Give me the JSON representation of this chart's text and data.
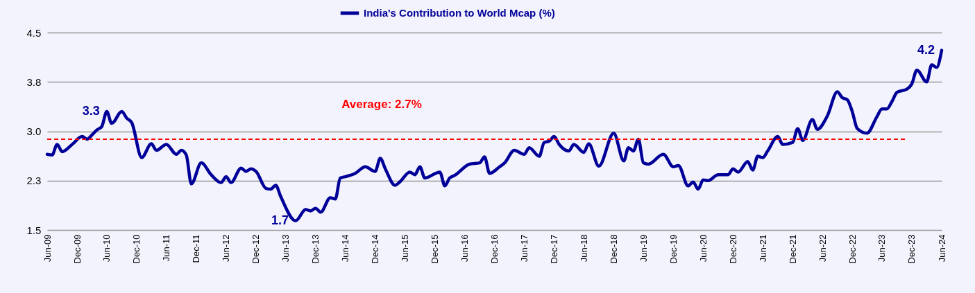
{
  "chart_data": {
    "type": "line",
    "x": [
      "2009-06",
      "2009-07",
      "2009-08",
      "2009-09",
      "2009-11",
      "2010-01",
      "2010-02",
      "2010-03",
      "2010-04",
      "2010-05",
      "2010-06",
      "2010-07",
      "2010-09",
      "2010-10",
      "2010-11",
      "2011-01",
      "2011-03",
      "2011-04",
      "2011-06",
      "2011-08",
      "2011-09",
      "2011-10",
      "2011-11",
      "2012-01",
      "2012-03",
      "2012-05",
      "2012-06",
      "2012-07",
      "2012-09",
      "2012-10",
      "2012-11",
      "2012-12",
      "2013-02",
      "2013-03",
      "2013-04",
      "2013-05",
      "2013-08",
      "2013-10",
      "2013-11",
      "2013-12",
      "2014-01",
      "2014-03",
      "2014-04",
      "2014-05",
      "2014-06",
      "2014-08",
      "2014-10",
      "2014-12",
      "2015-01",
      "2015-02",
      "2015-04",
      "2015-05",
      "2015-07",
      "2015-08",
      "2015-09",
      "2015-10",
      "2016-01",
      "2016-02",
      "2016-03",
      "2016-04",
      "2016-07",
      "2016-09",
      "2016-10",
      "2016-11",
      "2017-01",
      "2017-02",
      "2017-04",
      "2017-06",
      "2017-07",
      "2017-09",
      "2017-10",
      "2017-11",
      "2017-12",
      "2018-01",
      "2018-03",
      "2018-04",
      "2018-06",
      "2018-07",
      "2018-09",
      "2018-12",
      "2019-02",
      "2019-03",
      "2019-04",
      "2019-05",
      "2019-06",
      "2019-07",
      "2019-10",
      "2019-12",
      "2020-01",
      "2020-03",
      "2020-04",
      "2020-05",
      "2020-06",
      "2020-07",
      "2020-09",
      "2020-11",
      "2020-12",
      "2021-01",
      "2021-03",
      "2021-04",
      "2021-05",
      "2021-06",
      "2021-07",
      "2021-09",
      "2021-10",
      "2021-12",
      "2022-01",
      "2022-02",
      "2022-04",
      "2022-05",
      "2022-07",
      "2022-09",
      "2022-10",
      "2022-11",
      "2022-12",
      "2023-01",
      "2023-03",
      "2023-05",
      "2023-06",
      "2023-07",
      "2023-08",
      "2023-09",
      "2023-11",
      "2023-12",
      "2024-01",
      "2024-03",
      "2024-04",
      "2024-05",
      "2024-06"
    ],
    "series": [
      {
        "name": "India's Contribution to World Mcap (%)",
        "color": "#000099",
        "values": [
          2.65,
          2.64,
          2.8,
          2.69,
          2.8,
          2.92,
          2.88,
          2.94,
          3.02,
          3.07,
          3.3,
          3.12,
          3.3,
          3.2,
          3.13,
          2.6,
          2.81,
          2.71,
          2.8,
          2.65,
          2.71,
          2.64,
          2.2,
          2.52,
          2.34,
          2.22,
          2.31,
          2.22,
          2.44,
          2.39,
          2.43,
          2.39,
          2.13,
          2.12,
          2.18,
          2.01,
          1.64,
          1.81,
          1.79,
          1.83,
          1.77,
          1.99,
          1.97,
          2.29,
          2.31,
          2.36,
          2.46,
          2.39,
          2.59,
          2.43,
          2.18,
          2.23,
          2.38,
          2.34,
          2.46,
          2.29,
          2.38,
          2.17,
          2.29,
          2.33,
          2.5,
          2.52,
          2.61,
          2.36,
          2.46,
          2.52,
          2.71,
          2.65,
          2.75,
          2.62,
          2.83,
          2.85,
          2.92,
          2.8,
          2.7,
          2.8,
          2.68,
          2.81,
          2.47,
          2.97,
          2.55,
          2.75,
          2.7,
          2.88,
          2.52,
          2.5,
          2.65,
          2.46,
          2.48,
          2.17,
          2.23,
          2.12,
          2.26,
          2.25,
          2.34,
          2.34,
          2.43,
          2.38,
          2.54,
          2.41,
          2.62,
          2.6,
          2.7,
          2.92,
          2.8,
          2.83,
          3.04,
          2.86,
          3.18,
          3.03,
          3.23,
          3.6,
          3.51,
          3.48,
          3.3,
          3.04,
          2.97,
          3.22,
          3.34,
          3.34,
          3.45,
          3.59,
          3.64,
          3.72,
          3.93,
          3.75,
          4.01,
          3.97,
          4.23
        ]
      }
    ],
    "xlim": [
      "2009-06",
      "2024-06"
    ],
    "xticks": [
      {
        "value": "2009-06",
        "label": "Jun-09"
      },
      {
        "value": "2009-12",
        "label": "Dec-09"
      },
      {
        "value": "2010-06",
        "label": "Jun-10"
      },
      {
        "value": "2010-12",
        "label": "Dec-10"
      },
      {
        "value": "2011-06",
        "label": "Jun-11"
      },
      {
        "value": "2011-12",
        "label": "Dec-11"
      },
      {
        "value": "2012-06",
        "label": "Jun-12"
      },
      {
        "value": "2012-12",
        "label": "Dec-12"
      },
      {
        "value": "2013-06",
        "label": "Jun-13"
      },
      {
        "value": "2013-12",
        "label": "Dec-13"
      },
      {
        "value": "2014-06",
        "label": "Jun-14"
      },
      {
        "value": "2014-12",
        "label": "Dec-14"
      },
      {
        "value": "2015-06",
        "label": "Jun-15"
      },
      {
        "value": "2015-12",
        "label": "Dec-15"
      },
      {
        "value": "2016-06",
        "label": "Jun-16"
      },
      {
        "value": "2016-12",
        "label": "Dec-16"
      },
      {
        "value": "2017-06",
        "label": "Jun-17"
      },
      {
        "value": "2017-12",
        "label": "Dec-17"
      },
      {
        "value": "2018-06",
        "label": "Jun-18"
      },
      {
        "value": "2018-12",
        "label": "Dec-18"
      },
      {
        "value": "2019-06",
        "label": "Jun-19"
      },
      {
        "value": "2019-12",
        "label": "Dec-19"
      },
      {
        "value": "2020-06",
        "label": "Jun-20"
      },
      {
        "value": "2020-12",
        "label": "Dec-20"
      },
      {
        "value": "2021-06",
        "label": "Jun-21"
      },
      {
        "value": "2021-12",
        "label": "Dec-21"
      },
      {
        "value": "2022-06",
        "label": "Jun-22"
      },
      {
        "value": "2022-12",
        "label": "Dec-22"
      },
      {
        "value": "2023-06",
        "label": "Jun-23"
      },
      {
        "value": "2023-12",
        "label": "Dec-23"
      },
      {
        "value": "2024-06",
        "label": "Jun-24"
      }
    ],
    "ylim": [
      1.5,
      4.5
    ],
    "yticks": [
      1.5,
      {
        "value": 2.25,
        "label": "2.3"
      },
      {
        "value": 3.0,
        "label": "3.0"
      },
      {
        "value": 3.75,
        "label": "3.8"
      },
      4.5
    ],
    "grid": "y",
    "legend": "top",
    "marker": "none",
    "line_style": "solid",
    "ref_lines": [
      {
        "axis": "y",
        "value": 2.88,
        "color": "#ff0000",
        "line_style": "dashed"
      }
    ],
    "annotations": [
      "Average: 2.7%",
      {
        "text": "3.3",
        "x": "2010-06",
        "y": 3.3
      },
      {
        "text": "1.7",
        "x": "2013-08",
        "y": 1.64
      },
      {
        "text": "4.2",
        "x": "2024-06",
        "y": 4.23
      }
    ]
  }
}
